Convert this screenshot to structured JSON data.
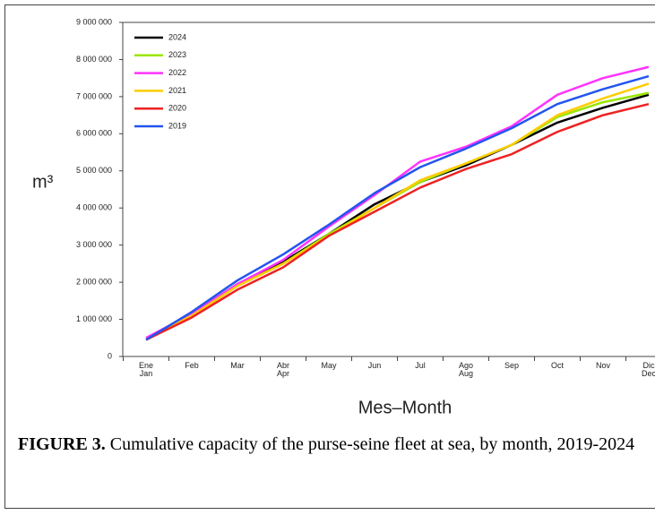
{
  "chart_data": {
    "type": "line",
    "y_label": "m³",
    "x_label": "Mes–Month",
    "categories": [
      "Ene\nJan",
      "Feb",
      "Mar",
      "Abr\nApr",
      "May",
      "Jun",
      "Jul",
      "Ago\nAug",
      "Sep",
      "Oct",
      "Nov",
      "Dic\nDec"
    ],
    "ylim": [
      0,
      9000000
    ],
    "yticks": [
      0,
      {
        "value": 1000000,
        "label": "1 000 000"
      },
      {
        "value": 2000000,
        "label": "2 000 000"
      },
      {
        "value": 3000000,
        "label": "3 000 000"
      },
      {
        "value": 4000000,
        "label": "4 000 000"
      },
      {
        "value": 5000000,
        "label": "5 000 000"
      },
      {
        "value": 6000000,
        "label": "6 000 000"
      },
      {
        "value": 7000000,
        "label": "7 000 000"
      },
      {
        "value": 8000000,
        "label": "8 000 000"
      },
      {
        "value": 9000000,
        "label": "9 000 000"
      }
    ],
    "legend": "upper left",
    "series": [
      {
        "name": "2024",
        "color": "#000000",
        "values": [
          450000,
          1150000,
          1950000,
          2550000,
          3300000,
          4100000,
          4700000,
          5150000,
          5700000,
          6300000,
          6700000,
          7050000
        ]
      },
      {
        "name": "2023",
        "color": "#99e600",
        "values": [
          450000,
          1100000,
          1900000,
          2500000,
          3300000,
          4000000,
          4700000,
          5200000,
          5700000,
          6450000,
          6850000,
          7100000
        ]
      },
      {
        "name": "2022",
        "color": "#ff33ff",
        "values": [
          500000,
          1150000,
          1950000,
          2600000,
          3500000,
          4350000,
          5250000,
          5650000,
          6200000,
          7050000,
          7500000,
          7800000
        ]
      },
      {
        "name": "2021",
        "color": "#ffcc00",
        "values": [
          450000,
          1100000,
          1900000,
          2500000,
          3250000,
          4000000,
          4750000,
          5200000,
          5700000,
          6500000,
          6950000,
          7350000
        ]
      },
      {
        "name": "2020",
        "color": "#ee2222",
        "values": [
          450000,
          1050000,
          1800000,
          2400000,
          3250000,
          3900000,
          4550000,
          5050000,
          5450000,
          6050000,
          6500000,
          6800000
        ]
      },
      {
        "name": "2019",
        "color": "#2255ee",
        "values": [
          450000,
          1200000,
          2050000,
          2750000,
          3550000,
          4400000,
          5100000,
          5600000,
          6150000,
          6800000,
          7200000,
          7550000
        ]
      }
    ]
  },
  "caption": {
    "label": "FIGURE 3.",
    "text": "Cumulative capacity of the purse-seine fleet at sea, by month, 2019-2024"
  }
}
